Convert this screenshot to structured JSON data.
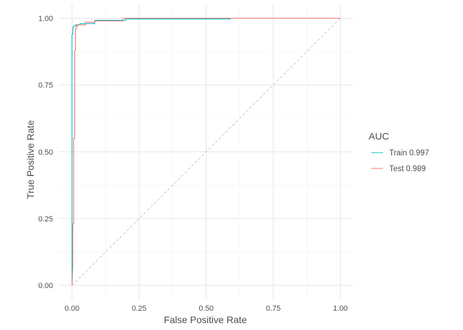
{
  "chart_data": {
    "type": "line",
    "title": "",
    "xlabel": "False Positive Rate",
    "ylabel": "True Positive Rate",
    "xlim": [
      0,
      1
    ],
    "ylim": [
      0,
      1
    ],
    "x_ticks": [
      "0.00",
      "0.25",
      "0.50",
      "0.75",
      "1.00"
    ],
    "y_ticks": [
      "0.00",
      "0.25",
      "0.50",
      "0.75",
      "1.00"
    ],
    "grid": true,
    "legend": {
      "title": "AUC",
      "position": "right"
    },
    "reference_line": {
      "x": [
        0,
        1
      ],
      "y": [
        0,
        1
      ],
      "style": "dashed",
      "color": "#bdbdbd"
    },
    "series": [
      {
        "name": "Train 0.997",
        "color": "#00BFC4",
        "x": [
          0,
          0,
          0.003,
          0.003,
          0.006,
          0.006,
          0.015,
          0.015,
          0.03,
          0.03,
          0.085,
          0.085,
          0.2,
          0.2,
          0.59,
          0.59,
          1
        ],
        "y": [
          0,
          0.94,
          0.94,
          0.965,
          0.965,
          0.972,
          0.972,
          0.976,
          0.976,
          0.98,
          0.98,
          0.992,
          0.992,
          0.997,
          0.997,
          1,
          1
        ]
      },
      {
        "name": "Test 0.989",
        "color": "#F8766D",
        "x": [
          0,
          0.003,
          0.003,
          0.006,
          0.006,
          0.01,
          0.01,
          0.013,
          0.013,
          0.016,
          0.016,
          0.02,
          0.02,
          0.05,
          0.05,
          0.085,
          0.085,
          0.19,
          0.19,
          1
        ],
        "y": [
          0,
          0.08,
          0.23,
          0.23,
          0.55,
          0.55,
          0.88,
          0.88,
          0.96,
          0.96,
          0.97,
          0.97,
          0.975,
          0.975,
          0.985,
          0.985,
          0.99,
          0.99,
          1,
          1
        ]
      }
    ]
  }
}
